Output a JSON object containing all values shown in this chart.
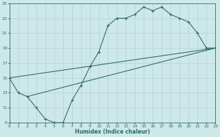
{
  "xlabel": "Humidex (Indice chaleur)",
  "xlim": [
    0,
    23
  ],
  "ylim": [
    9,
    25
  ],
  "xticks": [
    0,
    1,
    2,
    3,
    4,
    5,
    6,
    7,
    8,
    9,
    10,
    11,
    12,
    13,
    14,
    15,
    16,
    17,
    18,
    19,
    20,
    21,
    22,
    23
  ],
  "yticks": [
    9,
    11,
    13,
    15,
    17,
    19,
    21,
    23,
    25
  ],
  "bg_color": "#cde8e8",
  "grid_color": "#b8d4d4",
  "line_color": "#2d6b60",
  "line1_x": [
    0,
    1,
    2,
    3,
    4,
    5,
    6,
    7,
    8,
    9,
    10,
    11,
    12,
    13,
    14,
    15,
    16,
    17,
    18,
    19,
    20,
    21,
    22,
    23
  ],
  "line1_y": [
    15,
    13,
    12.5,
    11,
    9.5,
    9,
    9,
    12,
    14,
    16.5,
    18.5,
    22,
    23,
    23,
    23.5,
    24.5,
    24,
    24.5,
    23.5,
    23,
    22.5,
    21,
    19,
    19
  ],
  "line2_x": [
    0,
    23
  ],
  "line2_y": [
    15,
    19
  ],
  "line3_x": [
    2,
    23
  ],
  "line3_y": [
    12.5,
    19
  ]
}
